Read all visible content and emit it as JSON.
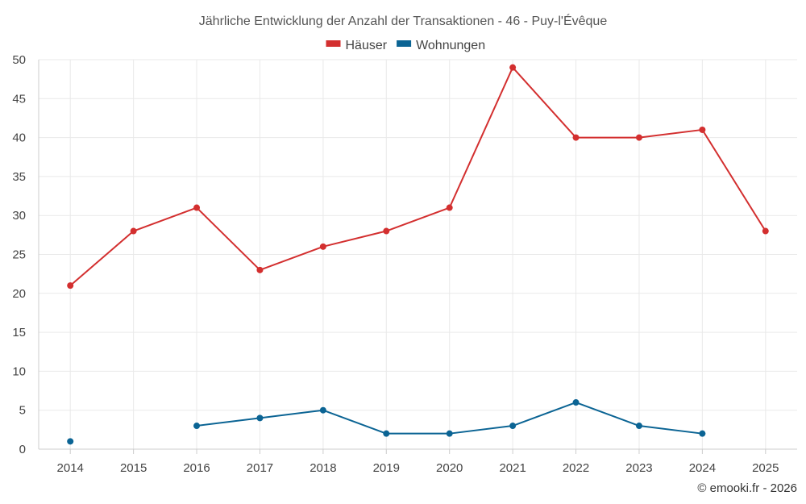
{
  "chart_data": {
    "type": "line",
    "title": "Jährliche Entwicklung der Anzahl der Transaktionen - 46 - Puy-l'Évêque",
    "xlabel": "",
    "ylabel": "",
    "x": [
      "2014",
      "2015",
      "2016",
      "2017",
      "2018",
      "2019",
      "2020",
      "2021",
      "2022",
      "2023",
      "2024",
      "2025"
    ],
    "ylim": [
      0,
      50
    ],
    "yticks": [
      0,
      5,
      10,
      15,
      20,
      25,
      30,
      35,
      40,
      45,
      50
    ],
    "grid": true,
    "legend_position": "top-center",
    "series": [
      {
        "name": "Häuser",
        "color": "#d32f2f",
        "values": [
          21,
          28,
          31,
          23,
          26,
          28,
          31,
          49,
          40,
          40,
          41,
          28
        ]
      },
      {
        "name": "Wohnungen",
        "color": "#0b6494",
        "values": [
          1,
          null,
          3,
          4,
          5,
          2,
          2,
          3,
          6,
          3,
          2,
          null
        ]
      }
    ]
  },
  "credit": "© emooki.fr - 2026"
}
